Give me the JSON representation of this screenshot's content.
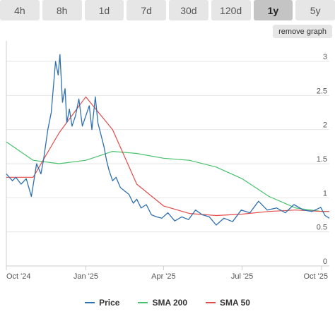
{
  "tabs": [
    {
      "label": "4h",
      "active": false
    },
    {
      "label": "8h",
      "active": false
    },
    {
      "label": "1d",
      "active": false
    },
    {
      "label": "7d",
      "active": false
    },
    {
      "label": "30d",
      "active": false
    },
    {
      "label": "120d",
      "active": false
    },
    {
      "label": "1y",
      "active": true
    },
    {
      "label": "5y",
      "active": false
    }
  ],
  "remove_graph_label": "remove graph",
  "colors": {
    "price": "#2f6fb0",
    "sma200": "#47c26c",
    "sma50": "#e24b4b",
    "grid": "#e6e6e6",
    "text": "#555555"
  },
  "chart_data": {
    "type": "line",
    "x_labels": [
      "Oct '24",
      "Jan '25",
      "Apr '25",
      "Jul '25",
      "Oct '25"
    ],
    "yticks": [
      "0",
      "0.5",
      "1",
      "1.5",
      "2",
      "2.5",
      "3"
    ],
    "ylim": [
      0,
      3.3
    ],
    "grid": true,
    "legend_position": "bottom",
    "series": [
      {
        "name": "Price",
        "x": [
          "2024-10-01",
          "2024-10-08",
          "2024-10-12",
          "2024-10-18",
          "2024-10-24",
          "2024-10-30",
          "2024-11-05",
          "2024-11-10",
          "2024-11-13",
          "2024-11-18",
          "2024-11-22",
          "2024-11-27",
          "2024-11-30",
          "2024-12-02",
          "2024-12-05",
          "2024-12-08",
          "2024-12-10",
          "2024-12-13",
          "2024-12-16",
          "2024-12-20",
          "2024-12-24",
          "2024-12-28",
          "2025-01-01",
          "2025-01-05",
          "2025-01-08",
          "2025-01-12",
          "2025-01-15",
          "2025-01-18",
          "2025-01-22",
          "2025-01-25",
          "2025-01-28",
          "2025-02-01",
          "2025-02-05",
          "2025-02-10",
          "2025-02-15",
          "2025-02-20",
          "2025-02-25",
          "2025-03-01",
          "2025-03-06",
          "2025-03-12",
          "2025-03-18",
          "2025-03-24",
          "2025-03-30",
          "2025-04-06",
          "2025-04-14",
          "2025-04-22",
          "2025-04-30",
          "2025-05-08",
          "2025-05-16",
          "2025-05-24",
          "2025-06-01",
          "2025-06-10",
          "2025-06-20",
          "2025-06-30",
          "2025-07-10",
          "2025-07-20",
          "2025-07-30",
          "2025-08-10",
          "2025-08-20",
          "2025-08-30",
          "2025-09-10",
          "2025-09-20",
          "2025-09-30",
          "2025-10-05",
          "2025-10-10"
        ],
        "values": [
          1.35,
          1.25,
          1.3,
          1.2,
          1.28,
          1.02,
          1.5,
          1.35,
          1.55,
          2.0,
          2.25,
          3.0,
          2.8,
          3.1,
          2.4,
          2.6,
          2.1,
          2.3,
          2.05,
          2.2,
          2.45,
          2.05,
          2.2,
          2.35,
          2.0,
          2.48,
          2.1,
          1.95,
          1.75,
          1.55,
          1.4,
          1.25,
          1.3,
          1.15,
          1.1,
          1.05,
          0.92,
          0.98,
          0.85,
          0.9,
          0.75,
          0.72,
          0.7,
          0.78,
          0.66,
          0.72,
          0.68,
          0.82,
          0.75,
          0.72,
          0.6,
          0.7,
          0.65,
          0.82,
          0.78,
          0.95,
          0.82,
          0.85,
          0.78,
          0.9,
          0.82,
          0.8,
          0.86,
          0.74,
          0.7
        ]
      },
      {
        "name": "SMA 200",
        "x": [
          "2024-10-01",
          "2024-11-01",
          "2024-12-01",
          "2025-01-01",
          "2025-02-01",
          "2025-03-01",
          "2025-04-01",
          "2025-05-01",
          "2025-06-01",
          "2025-07-01",
          "2025-08-01",
          "2025-09-01",
          "2025-10-01",
          "2025-10-10"
        ],
        "values": [
          1.82,
          1.55,
          1.5,
          1.55,
          1.68,
          1.65,
          1.58,
          1.55,
          1.45,
          1.28,
          1.02,
          0.85,
          0.8,
          0.8
        ]
      },
      {
        "name": "SMA 50",
        "x": [
          "2024-10-01",
          "2024-11-01",
          "2024-12-01",
          "2025-01-01",
          "2025-02-01",
          "2025-03-01",
          "2025-04-01",
          "2025-05-01",
          "2025-06-01",
          "2025-07-01",
          "2025-08-01",
          "2025-09-01",
          "2025-10-01",
          "2025-10-10"
        ],
        "values": [
          1.3,
          1.3,
          1.95,
          2.48,
          2.0,
          1.2,
          0.88,
          0.77,
          0.74,
          0.76,
          0.8,
          0.82,
          0.8,
          0.8
        ]
      }
    ]
  }
}
